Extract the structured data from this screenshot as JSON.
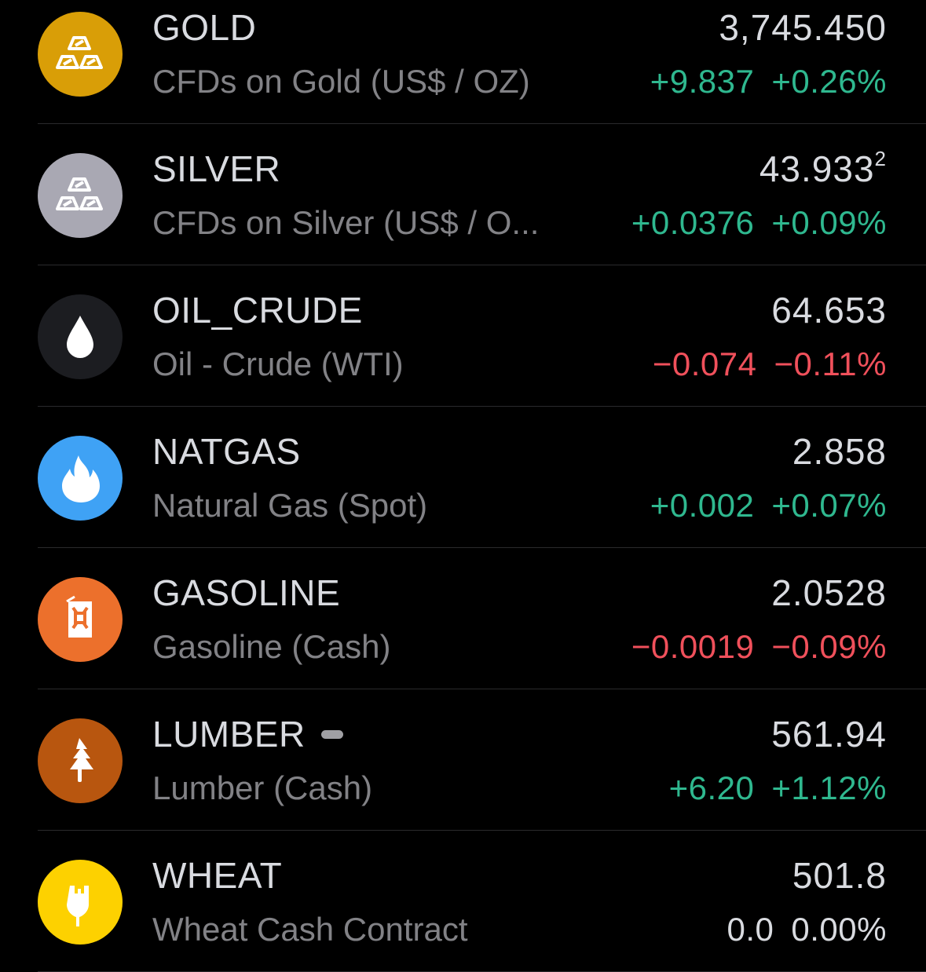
{
  "colors": {
    "up": "#2fb88f",
    "down": "#f0505b",
    "flat": "#d9dbe0"
  },
  "items": [
    {
      "symbol": "GOLD",
      "name": "CFDs on Gold (US$ / OZ)",
      "price": "3,745.450",
      "price_sup": "",
      "change": "+9.837",
      "change_pct": "+0.26%",
      "direction": "up",
      "icon": "gold-bars-icon",
      "icon_color": "#d99e07"
    },
    {
      "symbol": "SILVER",
      "name": "CFDs on Silver (US$ / O...",
      "price": "43.933",
      "price_sup": "2",
      "change": "+0.0376",
      "change_pct": "+0.09%",
      "direction": "up",
      "icon": "silver-bars-icon",
      "icon_color": "#a9a8b3"
    },
    {
      "symbol": "OIL_CRUDE",
      "name": "Oil - Crude (WTI)",
      "price": "64.653",
      "price_sup": "",
      "change": "−0.074",
      "change_pct": "−0.11%",
      "direction": "down",
      "icon": "oil-drop-icon",
      "icon_color": "#1c1d21"
    },
    {
      "symbol": "NATGAS",
      "name": "Natural Gas (Spot)",
      "price": "2.858",
      "price_sup": "",
      "change": "+0.002",
      "change_pct": "+0.07%",
      "direction": "up",
      "icon": "flame-icon",
      "icon_color": "#3fa2f5"
    },
    {
      "symbol": "GASOLINE",
      "name": "Gasoline (Cash)",
      "price": "2.0528",
      "price_sup": "",
      "change": "−0.0019",
      "change_pct": "−0.09%",
      "direction": "down",
      "icon": "jerry-can-icon",
      "icon_color": "#ec702c"
    },
    {
      "symbol": "LUMBER",
      "name": "Lumber (Cash)",
      "price": "561.94",
      "price_sup": "",
      "change": "+6.20",
      "change_pct": "+1.12%",
      "direction": "up",
      "icon": "pine-tree-icon",
      "icon_color": "#b8560f",
      "badge": "status-pill"
    },
    {
      "symbol": "WHEAT",
      "name": "Wheat Cash Contract",
      "price": "501.8",
      "price_sup": "",
      "change": "0.0",
      "change_pct": "0.00%",
      "direction": "flat",
      "icon": "wheat-icon",
      "icon_color": "#fdd100"
    }
  ]
}
